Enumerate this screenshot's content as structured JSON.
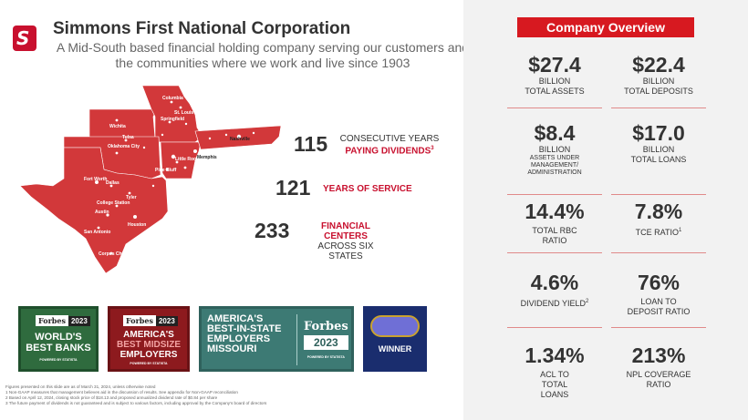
{
  "header": {
    "logo_letter": "S",
    "title": "Simmons First National Corporation",
    "subtitle": "A Mid-South based financial holding company serving our customers and the communities where we work and live since 1903"
  },
  "map": {
    "cities": [
      "Columbia",
      "St. Louis",
      "Springfield",
      "Wichita",
      "Tulsa",
      "Oklahoma City",
      "Little Rock",
      "Pine Bluff",
      "Memphis",
      "Nashville",
      "Fort Worth",
      "Dallas",
      "Tyler",
      "College Station",
      "Austin",
      "Houston",
      "San Antonio",
      "Corpus Christi"
    ]
  },
  "stats": [
    {
      "number": "115",
      "line1": "CONSECUTIVE YEARS",
      "line2": "PAYING DIVIDENDS",
      "sup": "3"
    },
    {
      "number": "121",
      "line1": "",
      "line2": "YEARS OF SERVICE",
      "sup": ""
    },
    {
      "number": "233",
      "line1": "FINANCIAL CENTERS",
      "line2": "ACROSS SIX STATES",
      "sup": ""
    }
  ],
  "badges": {
    "b1": {
      "brand": "Forbes",
      "year": "2023",
      "text": "WORLD'S BEST BANKS",
      "small": "POWERED BY STATISTA"
    },
    "b2": {
      "brand": "Forbes",
      "year": "2023",
      "text1": "AMERICA'S",
      "text2": "BEST MIDSIZE",
      "text3": "EMPLOYERS",
      "small": "POWERED BY STATISTA"
    },
    "b3": {
      "text": "AMERICA'S BEST-IN-STATE EMPLOYERS MISSOURI",
      "brand": "Forbes",
      "year": "2023",
      "small": "POWERED BY STATISTA"
    },
    "b4": {
      "text": "WINNER"
    }
  },
  "footnotes": [
    "Figures presented on this slide are as of March 31, 2024, unless otherwise noted",
    "1  Non-GAAP measures that management believes aid in the discussion of results. See appendix for Non-GAAP reconciliation",
    "2  Based on April 12, 2024, closing stock price of $18.13 and proposed annualized dividend rate of $0.84 per share",
    "3  The future payment of dividends is not guaranteed and is subject to various factors, including approval by the Company's board of directors"
  ],
  "overview": {
    "title": "Company Overview",
    "items": [
      {
        "value": "$27.4",
        "unit": "BILLION",
        "label": "TOTAL ASSETS",
        "sup": ""
      },
      {
        "value": "$22.4",
        "unit": "BILLION",
        "label": "TOTAL DEPOSITS",
        "sup": ""
      },
      {
        "value": "$8.4",
        "unit": "BILLION",
        "label": "ASSETS UNDER MANAGEMENT/ ADMINISTRATION",
        "sup": ""
      },
      {
        "value": "$17.0",
        "unit": "BILLION",
        "label": "TOTAL LOANS",
        "sup": ""
      },
      {
        "value": "14.4%",
        "unit": "",
        "label": "TOTAL RBC RATIO",
        "sup": ""
      },
      {
        "value": "7.8%",
        "unit": "",
        "label": "TCE RATIO",
        "sup": "1"
      },
      {
        "value": "4.6%",
        "unit": "",
        "label": "DIVIDEND YIELD",
        "sup": "2"
      },
      {
        "value": "76%",
        "unit": "",
        "label": "LOAN TO DEPOSIT RATIO",
        "sup": ""
      },
      {
        "value": "1.34%",
        "unit": "",
        "label": "ACL TO TOTAL LOANS",
        "sup": ""
      },
      {
        "value": "213%",
        "unit": "",
        "label": "NPL COVERAGE RATIO",
        "sup": ""
      }
    ]
  },
  "colors": {
    "brand_red": "#d71920",
    "map_red": "#d2383a"
  }
}
